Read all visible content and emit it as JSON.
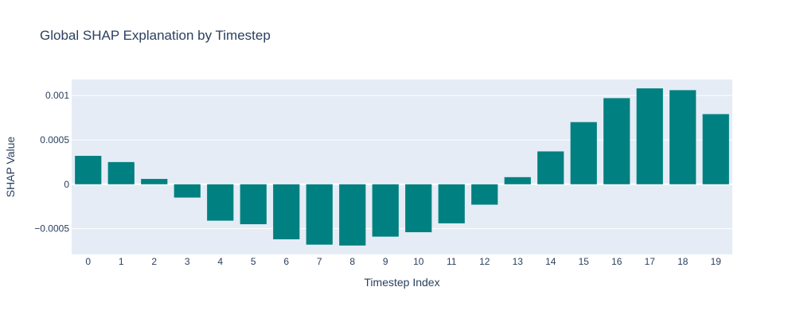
{
  "chart_data": {
    "type": "bar",
    "title": "Global SHAP Explanation by Timestep",
    "xlabel": "Timestep Index",
    "ylabel": "SHAP Value",
    "categories": [
      "0",
      "1",
      "2",
      "3",
      "4",
      "5",
      "6",
      "7",
      "8",
      "9",
      "10",
      "11",
      "12",
      "13",
      "14",
      "15",
      "16",
      "17",
      "18",
      "19"
    ],
    "values": [
      0.00032,
      0.00025,
      6e-05,
      -0.00015,
      -0.00041,
      -0.00045,
      -0.00062,
      -0.00068,
      -0.00069,
      -0.00059,
      -0.00054,
      -0.00044,
      -0.00023,
      8e-05,
      0.00037,
      0.0007,
      0.00097,
      0.00108,
      0.00106,
      0.00079
    ],
    "ylim": [
      -0.00079,
      0.00118
    ],
    "yticks": [
      -0.0005,
      0,
      0.0005,
      0.001
    ],
    "ytick_labels": [
      "−0.0005",
      "0",
      "0.0005",
      "0.001"
    ],
    "bar_color": "#008080",
    "plot_background": "#e5ecf6",
    "grid_color": "#ffffff",
    "grid": true,
    "legend": false
  }
}
